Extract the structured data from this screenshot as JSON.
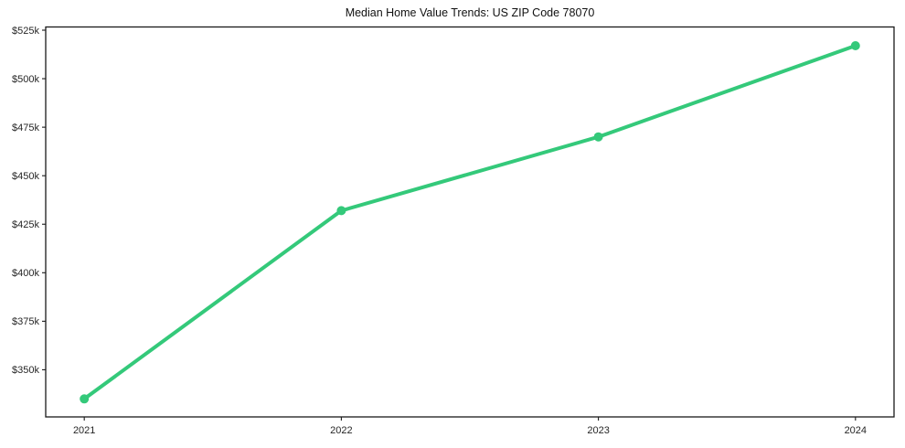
{
  "chart_data": {
    "type": "line",
    "title": "Median Home Value Trends: US ZIP Code 78070",
    "x": [
      2021,
      2022,
      2023,
      2024
    ],
    "x_tick_labels": [
      "2021",
      "2022",
      "2023",
      "2024"
    ],
    "series": [
      {
        "name": "Median Home Value",
        "values": [
          335000,
          432000,
          470000,
          517000
        ]
      }
    ],
    "y_ticks": [
      350000,
      375000,
      400000,
      425000,
      450000,
      475000,
      500000,
      525000
    ],
    "y_tick_labels": [
      "$350k",
      "$375k",
      "$400k",
      "$425k",
      "$450k",
      "$475k",
      "$500k",
      "$525k"
    ],
    "xlabel": "",
    "ylabel": "",
    "xlim": [
      2020.85,
      2024.15
    ],
    "ylim": [
      325700,
      526650
    ],
    "grid": false,
    "legend": null,
    "marker": "circle",
    "line_width": 4,
    "marker_radius": 5,
    "colors": {
      "line": "#34c97a",
      "spine": "#1a1a1a",
      "tick_label": "#262626",
      "title": "#111111",
      "background": "#ffffff"
    }
  }
}
